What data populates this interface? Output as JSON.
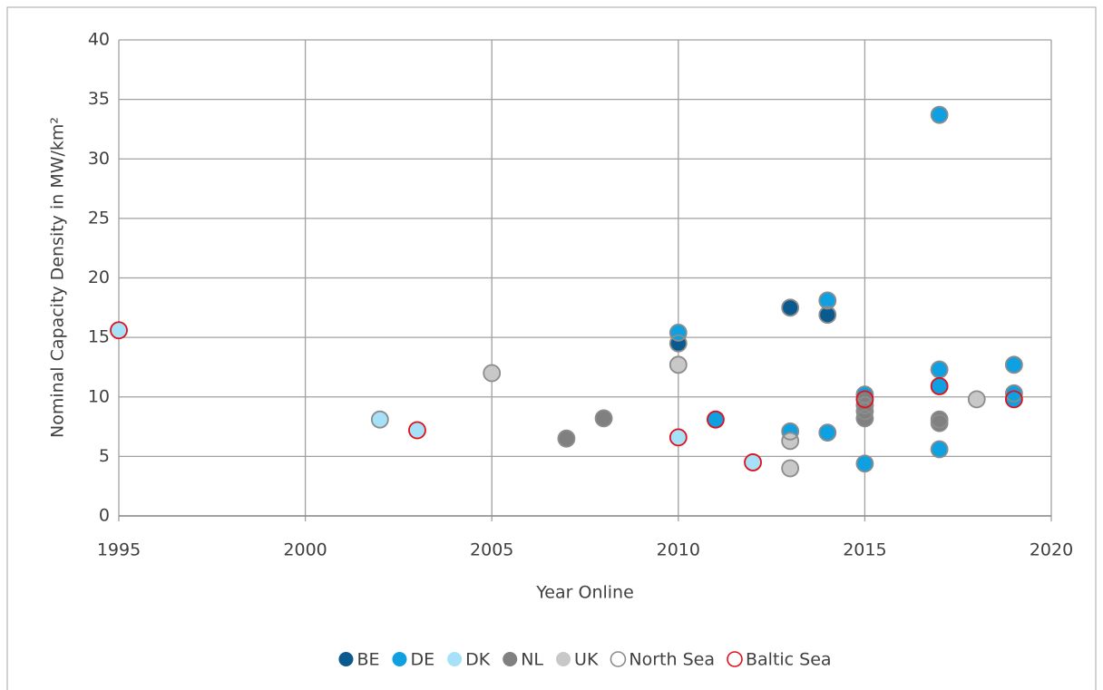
{
  "chart_data": {
    "type": "scatter",
    "x_label": "Year Online",
    "y_label": "Nominal Capacity Density in MW/km²",
    "xlim": [
      1995,
      2020
    ],
    "xticks": [
      1995,
      2000,
      2005,
      2010,
      2015,
      2020
    ],
    "ylim": [
      0,
      40
    ],
    "yticks": [
      0,
      5,
      10,
      15,
      20,
      25,
      30,
      35,
      40
    ],
    "grid": true,
    "legend": "bottom",
    "series": [
      {
        "name": "BE",
        "color": "#0b5a8f",
        "marker": "filled",
        "x": [
          2010,
          2013,
          2014
        ],
        "values": [
          14.5,
          17.5,
          16.9
        ]
      },
      {
        "name": "DE",
        "color": "#0ea0e0",
        "marker": "filled",
        "x": [
          2010,
          2011,
          2013,
          2014,
          2014,
          2015,
          2015,
          2017,
          2017,
          2017,
          2017,
          2019,
          2019,
          2019
        ],
        "values": [
          15.4,
          8.1,
          7.1,
          18.1,
          7.0,
          10.2,
          4.4,
          33.7,
          12.3,
          10.9,
          5.6,
          12.7,
          10.3,
          9.8
        ]
      },
      {
        "name": "DK",
        "color": "#a6e1f8",
        "marker": "filled",
        "x": [
          1995,
          2002,
          2003,
          2010,
          2012
        ],
        "values": [
          15.6,
          8.1,
          7.2,
          6.6,
          4.5
        ]
      },
      {
        "name": "NL",
        "color": "#808080",
        "marker": "filled",
        "x": [
          2007,
          2008,
          2015,
          2015,
          2015,
          2015,
          2017,
          2017
        ],
        "values": [
          6.5,
          8.2,
          9.8,
          9.3,
          8.8,
          8.2,
          8.1,
          7.8
        ]
      },
      {
        "name": "UK",
        "color": "#c8c8c8",
        "marker": "filled",
        "x": [
          2005,
          2010,
          2013,
          2013,
          2018
        ],
        "values": [
          12.0,
          12.7,
          6.3,
          4.0,
          9.8
        ]
      },
      {
        "name": "North Sea",
        "color": "#8c8c8c",
        "marker": "hollow",
        "x": [
          2010,
          2013,
          2014,
          2010,
          2013,
          2014,
          2014,
          2015,
          2015,
          2017,
          2017,
          2017,
          2019,
          2019,
          2002,
          2007,
          2008,
          2015,
          2015,
          2015,
          2017,
          2017,
          2005,
          2010,
          2013,
          2013,
          2018
        ],
        "values": [
          14.5,
          17.5,
          16.9,
          15.4,
          7.1,
          18.1,
          7.0,
          10.2,
          4.4,
          33.7,
          12.3,
          5.6,
          12.7,
          10.3,
          8.1,
          6.5,
          8.2,
          9.3,
          8.8,
          8.2,
          8.1,
          7.8,
          12.0,
          12.7,
          6.3,
          4.0,
          9.8
        ]
      },
      {
        "name": "Baltic Sea",
        "color": "#e0101c",
        "marker": "hollow",
        "x": [
          1995,
          2003,
          2010,
          2011,
          2012,
          2015,
          2017,
          2019
        ],
        "values": [
          15.6,
          7.2,
          6.6,
          8.1,
          4.5,
          9.8,
          10.9,
          9.8
        ]
      }
    ]
  }
}
